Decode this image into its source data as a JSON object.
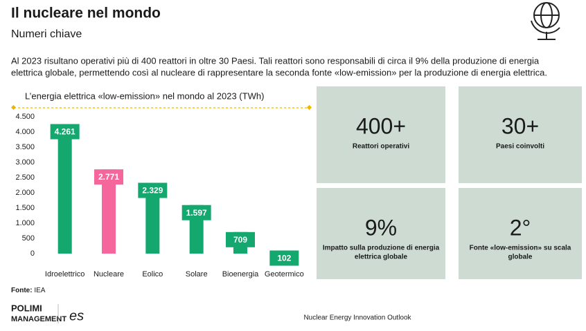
{
  "header": {
    "title": "Il nucleare nel mondo",
    "subtitle": "Numeri chiave"
  },
  "intro": [
    "Al 2023 risultano operativi più di 400 reattori in oltre 30 Paesi. Tali reattori sono responsabili di circa il 9% della produzione di energia",
    "elettrica globale, permettendo così al nucleare di rappresentare la seconda fonte «low-emission» per la produzione di energia elettrica."
  ],
  "chart_data": {
    "type": "bar",
    "title": "L’energia elettrica «low-emission» nel mondo al 2023 (TWh)",
    "categories": [
      "Idroelettrico",
      "Nucleare",
      "Eolico",
      "Solare",
      "Bioenergia",
      "Geotermico"
    ],
    "values": [
      4261,
      2771,
      2329,
      1597,
      709,
      102
    ],
    "value_labels": [
      "4.261",
      "2.771",
      "2.329",
      "1.597",
      "709",
      "102"
    ],
    "colors": [
      "#14a86f",
      "#f5679c",
      "#14a86f",
      "#14a86f",
      "#14a86f",
      "#14a86f"
    ],
    "ylim": [
      0,
      4500
    ],
    "yticks": [
      0,
      500,
      {
        "value": 1000,
        "label": "1.000"
      },
      {
        "value": 1500,
        "label": "1.500"
      },
      {
        "value": 2000,
        "label": "2.000"
      },
      {
        "value": 2500,
        "label": "2.500"
      },
      {
        "value": 3000,
        "label": "3.000"
      },
      {
        "value": 3500,
        "label": "3.500"
      },
      {
        "value": 4000,
        "label": "4.000"
      },
      {
        "value": 4500,
        "label": "4.500"
      }
    ]
  },
  "source": {
    "label": "Fonte:",
    "text": "IEA"
  },
  "stats": [
    {
      "value": "400+",
      "label": [
        "Reattori operativi"
      ]
    },
    {
      "value": "30+",
      "label": [
        "Paesi coinvolti"
      ]
    },
    {
      "value": "9%",
      "label": [
        "Impatto sulla produzione di energia",
        "elettrica globale"
      ]
    },
    {
      "value": "2°",
      "label": [
        "Fonte «low-emission» su scala",
        "globale"
      ]
    }
  ],
  "footer": {
    "text": "Nuclear Energy Innovation Outlook",
    "logo_top": "POLIMI",
    "logo_bottom": "MANAGEMENT",
    "logo_es": "es"
  }
}
